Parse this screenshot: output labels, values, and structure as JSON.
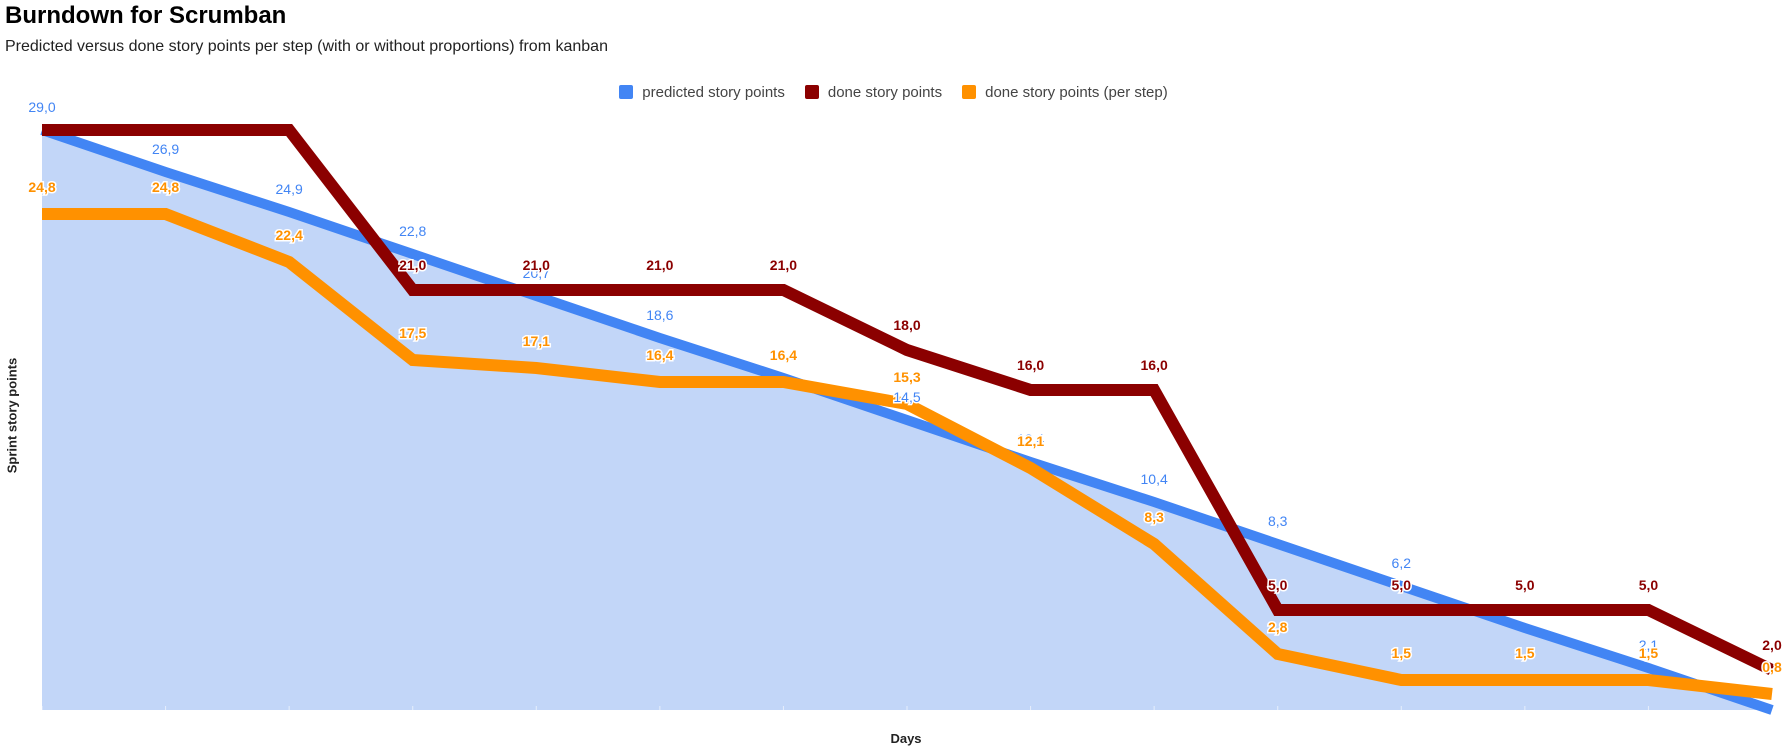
{
  "title": "Burndown for Scrumban",
  "subtitle": "Predicted versus done story points per step (with or without proportions) from kanban",
  "chart_data": {
    "type": "line",
    "title": "Burndown for Scrumban",
    "subtitle": "Predicted versus done story points per step (with or without proportions) from kanban",
    "xlabel": "Days",
    "ylabel": "Sprint story points",
    "ylim": [
      0,
      29
    ],
    "legend_position": "top",
    "grid": false,
    "x": [
      0,
      1,
      2,
      3,
      4,
      5,
      6,
      7,
      8,
      9,
      10,
      11,
      12,
      13,
      14
    ],
    "series": [
      {
        "name": "predicted story points",
        "color": "#4285f4",
        "fill": "#c2d6f8",
        "values": [
          29.0,
          26.9,
          24.9,
          22.8,
          20.7,
          18.6,
          16.6,
          14.5,
          12.4,
          10.4,
          8.3,
          6.2,
          4.1,
          2.1,
          0.0
        ],
        "labels": [
          "29,0",
          "26,9",
          "24,9",
          "22,8",
          "20,7",
          "18,6",
          "16,6",
          "14,5",
          "12,4",
          "10,4",
          "8,3",
          "6,2",
          "",
          "2,1",
          ""
        ]
      },
      {
        "name": "done story points",
        "color": "#8b0000",
        "values": [
          29.0,
          29.0,
          29.0,
          21.0,
          21.0,
          21.0,
          21.0,
          18.0,
          16.0,
          16.0,
          5.0,
          5.0,
          5.0,
          5.0,
          2.0
        ],
        "labels": [
          "",
          "",
          "",
          "21,0",
          "21,0",
          "21,0",
          "21,0",
          "18,0",
          "16,0",
          "16,0",
          "5,0",
          "5,0",
          "5,0",
          "5,0",
          "2,0"
        ]
      },
      {
        "name": "done story points (per step)",
        "color": "#ff9100",
        "values": [
          24.8,
          24.8,
          22.4,
          17.5,
          17.1,
          16.4,
          16.4,
          15.3,
          12.1,
          8.3,
          2.8,
          1.5,
          1.5,
          1.5,
          0.8
        ],
        "labels": [
          "24,8",
          "24,8",
          "22,4",
          "17,5",
          "17,1",
          "16,4",
          "16,4",
          "15,3",
          "12,1",
          "8,3",
          "2,8",
          "1,5",
          "1,5",
          "1,5",
          "0,8"
        ]
      }
    ]
  }
}
